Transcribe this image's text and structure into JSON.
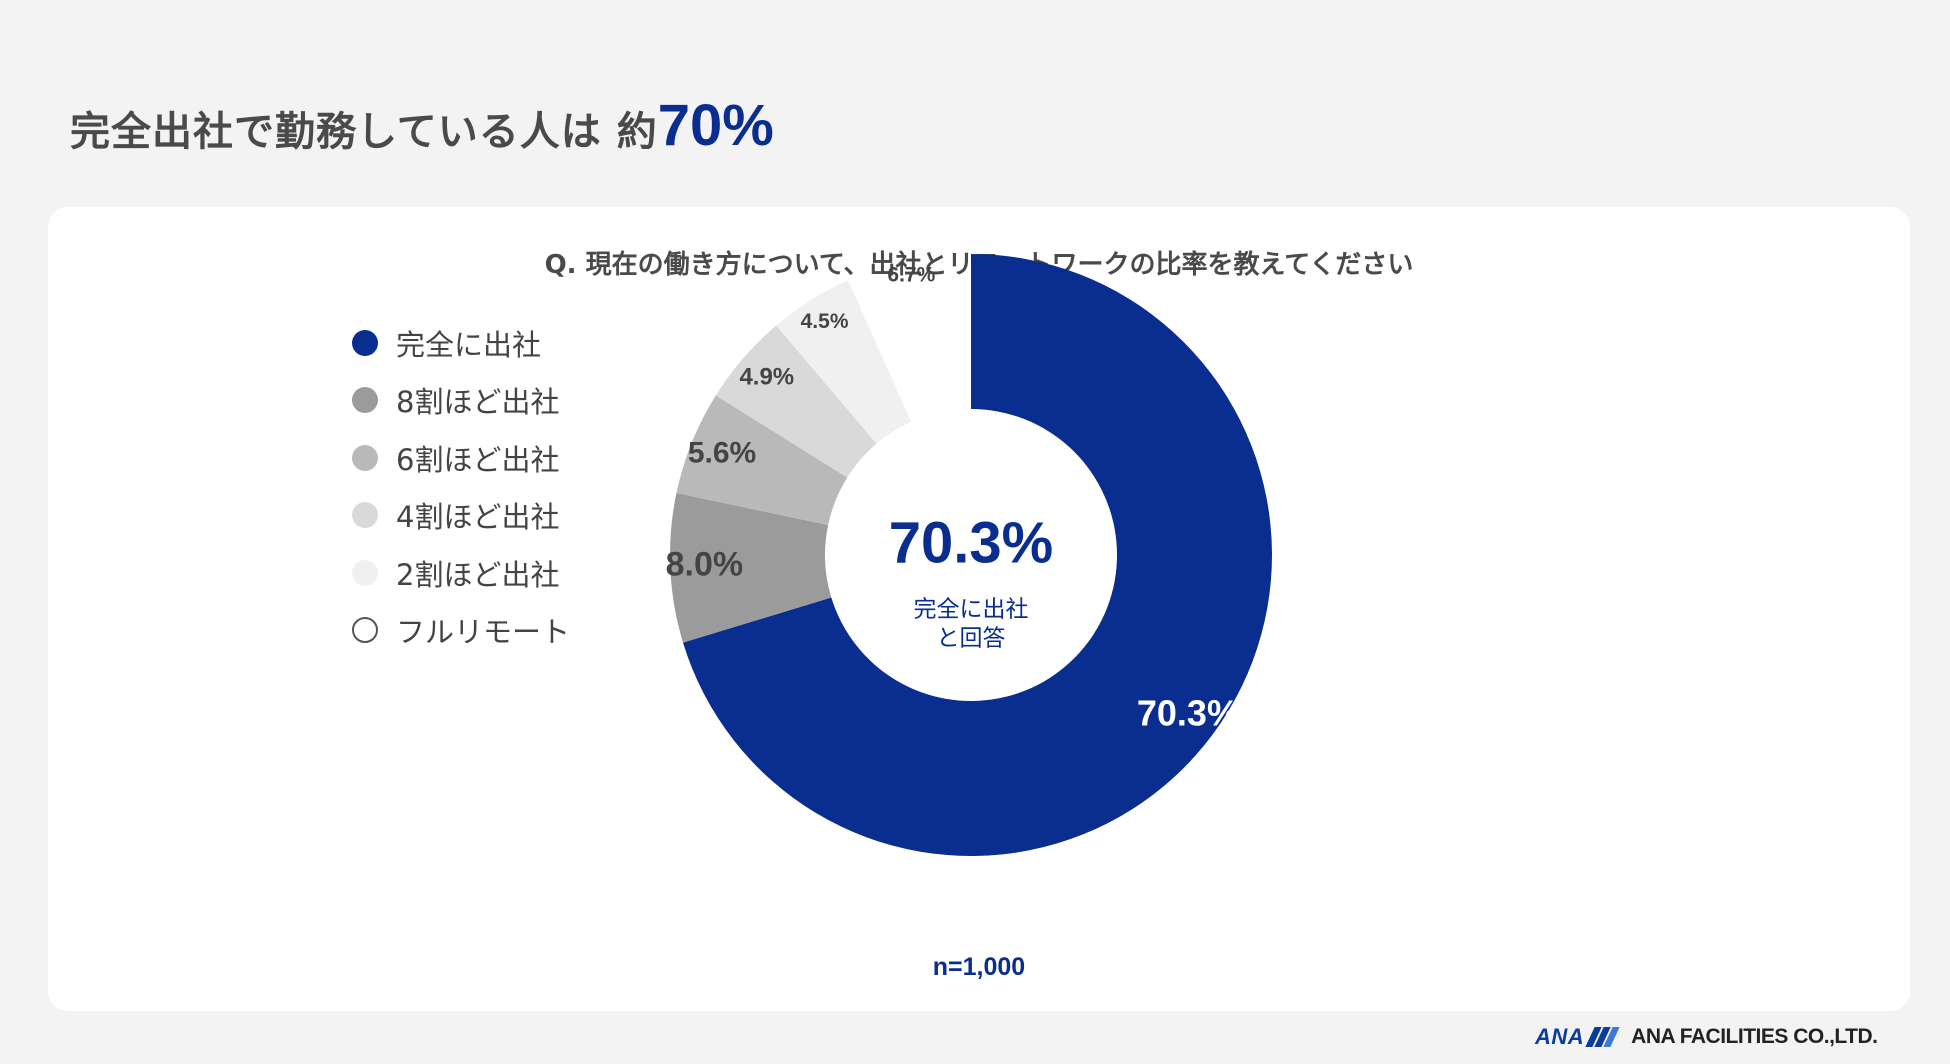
{
  "headline": {
    "prefix": "完全出社で勤務している人は 約",
    "highlight": "70%"
  },
  "footer": {
    "logo_text": "ANA",
    "company": "ANA FACILITIES CO.,LTD."
  },
  "colors": {
    "accent": "#0a2e8f",
    "dark_gray": "#9b9b9b",
    "mid_gray": "#b9b9b9",
    "light_gray": "#d9d9d9",
    "pale_gray": "#f0f0f0",
    "white": "#ffffff"
  },
  "chart_data": {
    "type": "pie",
    "variant": "donut",
    "title": "Q. 現在の働き方について、出社とリモートワークの比率を教えてください",
    "center_value": "70.3%",
    "center_label_line1": "完全に出社",
    "center_label_line2": "と回答",
    "note": "n=1,000",
    "legend_position": "left",
    "categories": [
      "完全に出社",
      "8割ほど出社",
      "6割ほど出社",
      "4割ほど出社",
      "2割ほど出社",
      "フルリモート"
    ],
    "values": [
      70.3,
      8.0,
      5.6,
      4.9,
      4.5,
      6.7
    ],
    "labels": [
      "70.3%",
      "8.0%",
      "5.6%",
      "4.9%",
      "4.5%",
      "6.7%"
    ],
    "slice_colors": [
      "#0a2e8f",
      "#9b9b9b",
      "#b9b9b9",
      "#d9d9d9",
      "#f0f0f0",
      "#ffffff"
    ]
  }
}
